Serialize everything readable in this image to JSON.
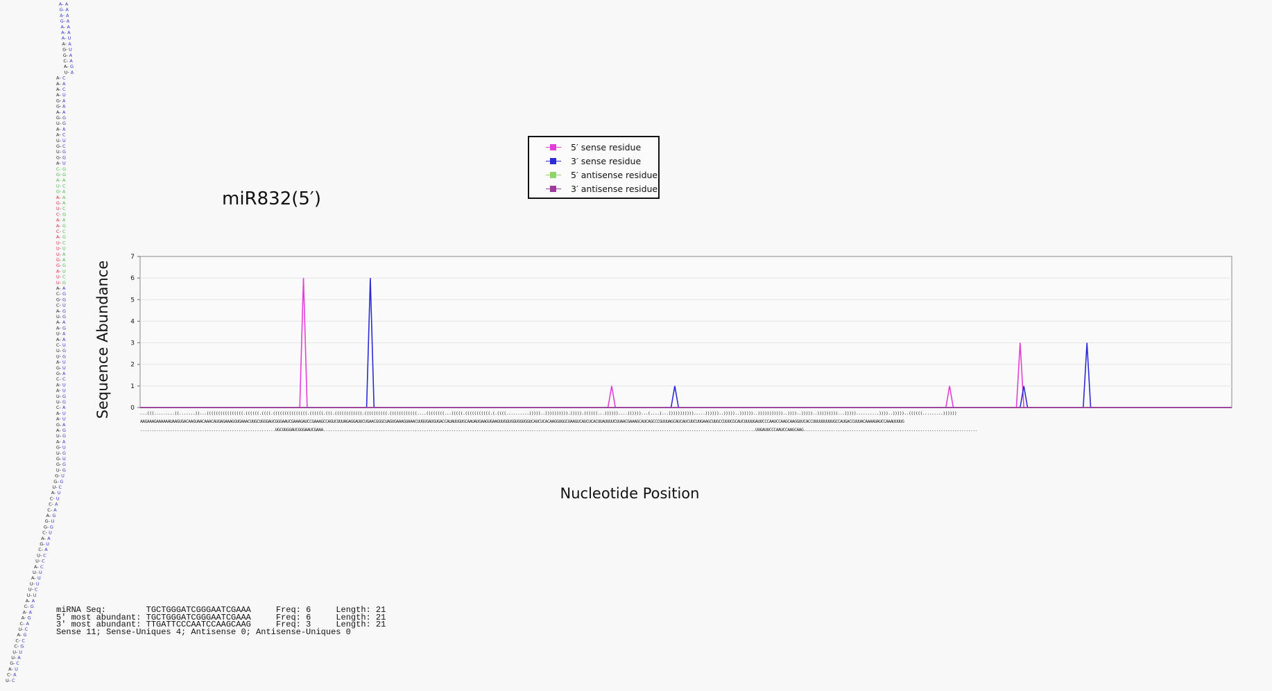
{
  "title": "miR832(5′)",
  "legend": [
    {
      "label": "5′ sense residue",
      "color": "#e33ed6"
    },
    {
      "label": "3′ sense residue",
      "color": "#2b2bd6"
    },
    {
      "label": "5′ antisense residue",
      "color": "#8fd36b"
    },
    {
      "label": "3′ antisense residue",
      "color": "#a03a9e"
    }
  ],
  "chart_data": {
    "type": "line",
    "ylabel": "Sequence Abundance",
    "xlabel": "Nucleotide Position",
    "ylim": [
      0,
      7
    ],
    "yticks": [
      "0",
      "1",
      "2",
      "3",
      "4",
      "5",
      "6",
      "7"
    ],
    "grid": true,
    "legend_position": "top-center",
    "sequence_length": 295,
    "series": [
      {
        "name": "5′ sense residue",
        "color": "#e33ed6",
        "points": [
          [
            44,
            6
          ],
          [
            127,
            1
          ],
          [
            218,
            1
          ],
          [
            237,
            3
          ]
        ]
      },
      {
        "name": "3′ sense residue",
        "color": "#2b2bd6",
        "points": [
          [
            62,
            6
          ],
          [
            144,
            1
          ],
          [
            238,
            1
          ],
          [
            255,
            3
          ]
        ]
      },
      {
        "name": "5′ antisense residue",
        "color": "#8fd36b",
        "points": []
      },
      {
        "name": "3′ antisense residue",
        "color": "#a03a9e",
        "points": []
      }
    ]
  },
  "sequence": {
    "structure": "...(((.........((.......))...((((((((((((((((.((((((.((((.(((((((((((((((.((((((.(((.((((((((((((.((((((((((.((((((((((((....((((((((...(((((.(((((((((((.(.((((..........)))))..)))))))))).))))).((((((...))))))....))))))...(....)...))))))))))).....))))))..)))))..))))))..)))))))))))..))))..)))))..)))))))))...)))))..........))))..)))))..((((((.........))))))",
    "bases": "AAGAAAGAAAAAAUAAGUGACAAGUAACAAACAUGAGAAAGGUGAAACUUGCUGGGAUCGGGAAUCGAAAGAUCCGAAAGCCAGUCUUUAGAGGAUUCUGAACGGGCUAGUGAAAGUAAACUUGUGAUGUGACCAUAUUGUGCAAUAUGAAGUGAAGUUGGUGGUGGUGGUCAUCUCACAAGGUGGCUAAGUCAUCUCACUUAUUUUCUUAACGAAAGCAUCAGCCCGUUUAGCAUCAUCUUCUUGAAGCUUGCCUUUCGCAUCUUUUGAUUCCCAAUCCAAGCAAGGUUCACCUUUUUUUUUGCCAUGACCUUUACAAAAUAUCCAAAUUUUG",
    "mirna_row": "...........................................................UGCUGGGAUCGGGAAUCGAAA.............................................................................................................................................................................................UUGAUUCCCAAUCCAAGCAAG............................................................................"
  },
  "stats": [
    {
      "label": "miRNA Seq:",
      "seq": "TGCTGGGATCGGGAATCGAAA",
      "freq": "Freq: 6",
      "length": "Length: 21"
    },
    {
      "label": "5′ most abundant:",
      "seq": "TGCTGGGATCGGGAATCGAAA",
      "freq": "Freq: 6",
      "length": "Length: 21"
    },
    {
      "label": "3′ most abundant:",
      "seq": "TTGATTCCCAATCCAAGCAAG",
      "freq": "Freq: 3",
      "length": "Length: 21"
    },
    {
      "summary": "Sense 11; Sense-Uniques 4; Antisense 0; Antisense-Uniques 0"
    }
  ],
  "hairpin": {
    "color_default": "#222222",
    "color_star": "#3030d0",
    "color_mirna_5": "#dd2244",
    "color_mirna_3": "#44bb44",
    "bases": "AAGAAAGAAAAAAUAAGUGACAAGUAACAAACAUGAGAAAGGUGAAACUUGCUGGGAUCGGGAAUCGAAAGAUCCGAAAGCCAGUCUUUAGAGGAUUCUGAACGGGCUAGUGAAAGUAAACUUGUGAUGUGACCAUAUUGUGCAAUAUGAAGUGAAGUUGGUGGUGGUGGUCAUCUCACAAGGUGGCUAAGUCAUCUCACUUAUUUUCUUAACGAAAGCAUCAGCCCGUUUAGCAUCAUCUUCUUGAAGC"
  }
}
